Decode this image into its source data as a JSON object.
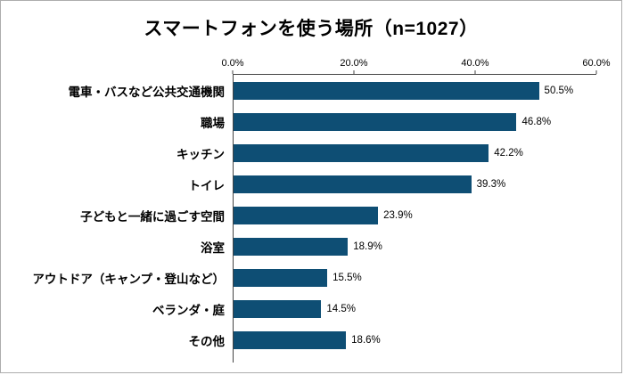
{
  "chart_data": {
    "type": "bar",
    "orientation": "horizontal",
    "title": "スマートフォンを使う場所（n=1027）",
    "categories": [
      "電車・バスなど公共交通機関",
      "職場",
      "キッチン",
      "トイレ",
      "子どもと一緒に過ごす空間",
      "浴室",
      "アウトドア（キャンプ・登山など）",
      "ベランダ・庭",
      "その他"
    ],
    "values": [
      50.5,
      46.8,
      42.2,
      39.3,
      23.9,
      18.9,
      15.5,
      14.5,
      18.6
    ],
    "value_labels": [
      "50.5%",
      "46.8%",
      "42.2%",
      "39.3%",
      "23.9%",
      "18.9%",
      "15.5%",
      "14.5%",
      "18.6%"
    ],
    "value_suffix": "%",
    "xlim": [
      0,
      60
    ],
    "x_ticks": [
      "0.0%",
      "20.0%",
      "40.0%",
      "60.0%"
    ],
    "x_tick_values": [
      0,
      20,
      40,
      60
    ],
    "bar_color": "#0e4e74",
    "axis_color": "#444444",
    "grid": "off",
    "legend": "none"
  }
}
